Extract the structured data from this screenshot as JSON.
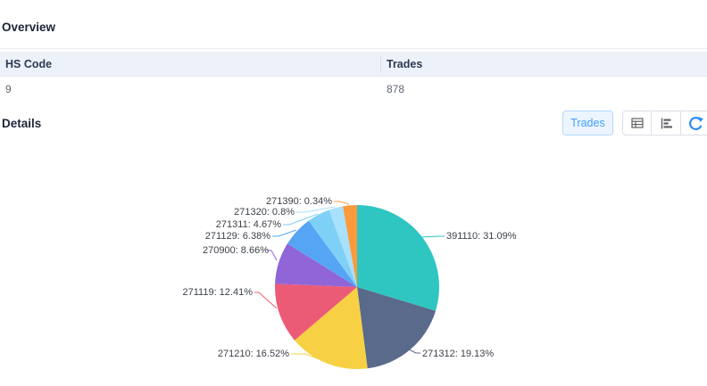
{
  "overview": {
    "title": "Overview",
    "table": {
      "columns": [
        "HS Code",
        "Trades"
      ],
      "row": {
        "hs_code": "9",
        "trades": "878"
      }
    }
  },
  "details": {
    "title": "Details",
    "trades_button_label": "Trades",
    "accent_color": "#409eff"
  },
  "chart_data": {
    "type": "pie",
    "title": "",
    "legend_position": "none",
    "unit": "%",
    "categories": [
      "391110",
      "271312",
      "271210",
      "271119",
      "270900",
      "271129",
      "271311",
      "271320",
      "271390"
    ],
    "values": [
      31.09,
      19.13,
      16.52,
      12.41,
      8.66,
      6.38,
      4.67,
      0.8,
      0.34
    ],
    "colors": [
      "#2fc6c2",
      "#5a6a8a",
      "#f7d143",
      "#ec5b76",
      "#9065d8",
      "#56a5f5",
      "#7fd0f7",
      "#a7e1fb",
      "#fb9a3c"
    ],
    "display_labels": [
      "391110: 31.09%",
      "271312: 19.13%",
      "271210: 16.52%",
      "271119: 12.41%",
      "270900: 8.66%",
      "271129: 6.38%",
      "271311: 4.67%",
      "271320: 0.8%",
      "271390: 0.34%"
    ],
    "min_angle_deg": 10
  }
}
